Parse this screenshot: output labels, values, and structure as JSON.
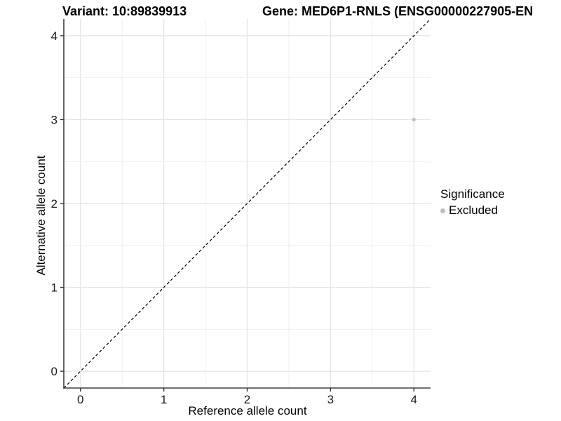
{
  "chart_data": {
    "type": "scatter",
    "title_variant": "Variant: 10:89839913",
    "title_gene": "Gene: MED6P1-RNLS (ENSG00000227905-EN",
    "xlabel": "Reference allele count",
    "ylabel": "Alternative allele count",
    "xlim": [
      -0.2,
      4.2
    ],
    "ylim": [
      -0.2,
      4.2
    ],
    "xticks": [
      0,
      1,
      2,
      3,
      4
    ],
    "yticks": [
      0,
      1,
      2,
      3,
      4
    ],
    "minor_step": 0.5,
    "grid": "on",
    "points": [
      {
        "x": 4,
        "y": 3,
        "significance": "Excluded"
      }
    ],
    "abline": {
      "slope": 1,
      "intercept": 0,
      "style": "dashed"
    },
    "legend": {
      "title": "Significance",
      "position": "right",
      "entries": [
        {
          "label": "Excluded",
          "color": "#bdbdbd"
        }
      ]
    },
    "colors": {
      "point": "#bdbdbd",
      "grid_major": "#e4e4e4",
      "grid_minor": "#efefef",
      "axis_line": "#404040",
      "tick_mark": "#333333",
      "tick_label": "#1a1a1a",
      "abline": "#000000",
      "background": "#ffffff"
    }
  }
}
